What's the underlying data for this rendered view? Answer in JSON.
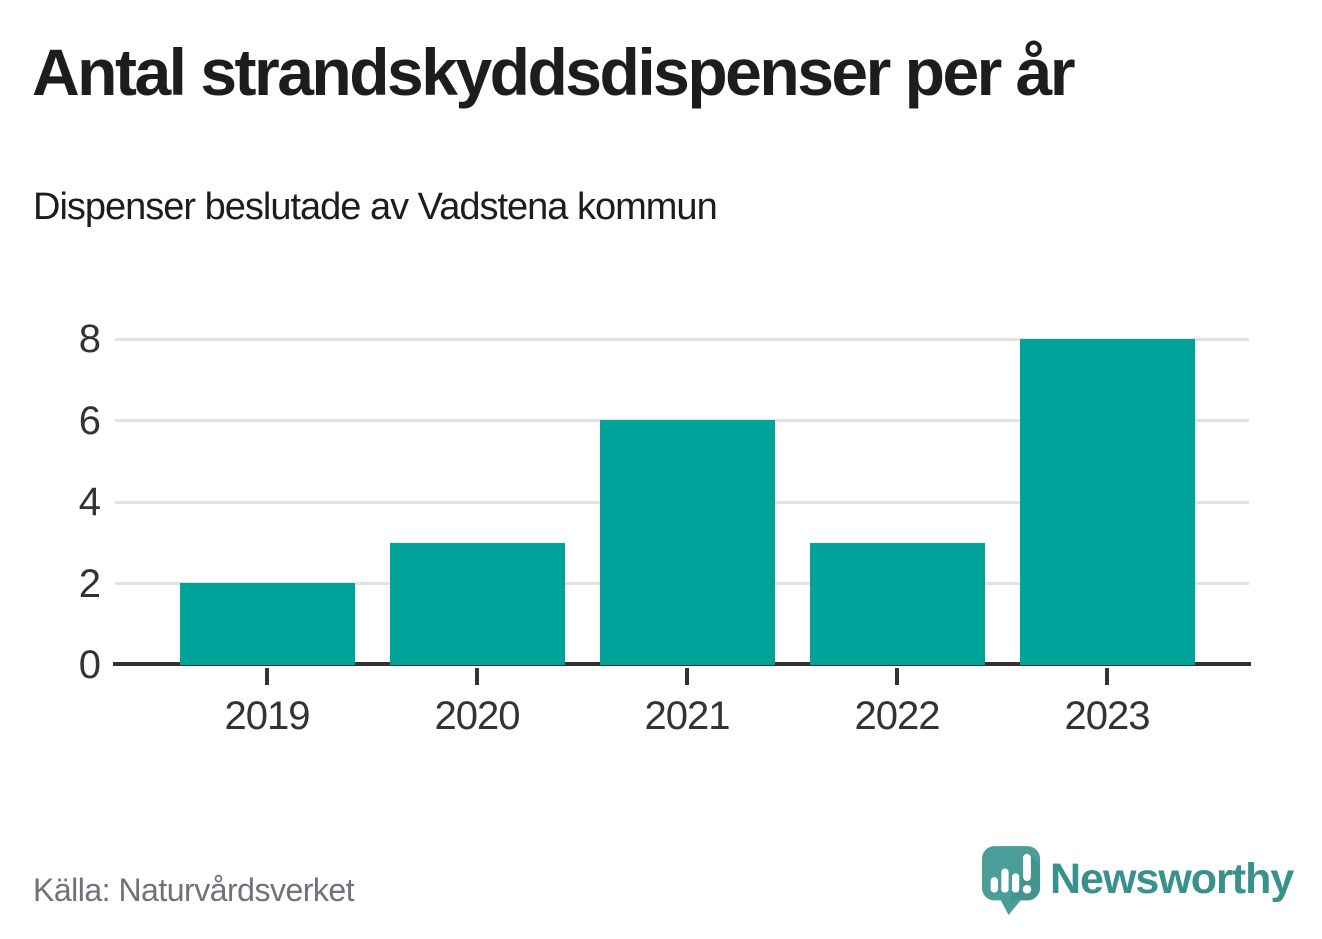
{
  "header": {
    "title": "Antal strandskyddsdispenser per år",
    "subtitle": "Dispenser beslutade av Vadstena kommun"
  },
  "footer": {
    "source_label": "Källa: Naturvårdsverket",
    "brand_name": "Newsworthy",
    "logo_icon": "speech-bubble-bar-chart-exclamation-icon"
  },
  "colors": {
    "bar": "#00a399",
    "gridline": "#e2e2e2",
    "axis": "#333333",
    "tick_label": "#333333",
    "title_text": "#1d1d1b",
    "source_text": "#71717a",
    "brand_text": "#38918c",
    "logo_bubble": "#4a9d98",
    "logo_bubble_shade": "#3f8e89"
  },
  "chart_data": {
    "type": "bar",
    "title": "Antal strandskyddsdispenser per år",
    "subtitle": "Dispenser beslutade av Vadstena kommun",
    "source": "Källa: Naturvårdsverket",
    "categories": [
      "2019",
      "2020",
      "2021",
      "2022",
      "2023"
    ],
    "values": [
      2,
      3,
      6,
      3,
      8
    ],
    "xlabel": "",
    "ylabel": "",
    "ylim": [
      0,
      8
    ],
    "yticks": [
      0,
      2,
      4,
      6,
      8
    ],
    "grid": "horizontal-only",
    "legend": "none",
    "bar_color": "#00a399"
  }
}
